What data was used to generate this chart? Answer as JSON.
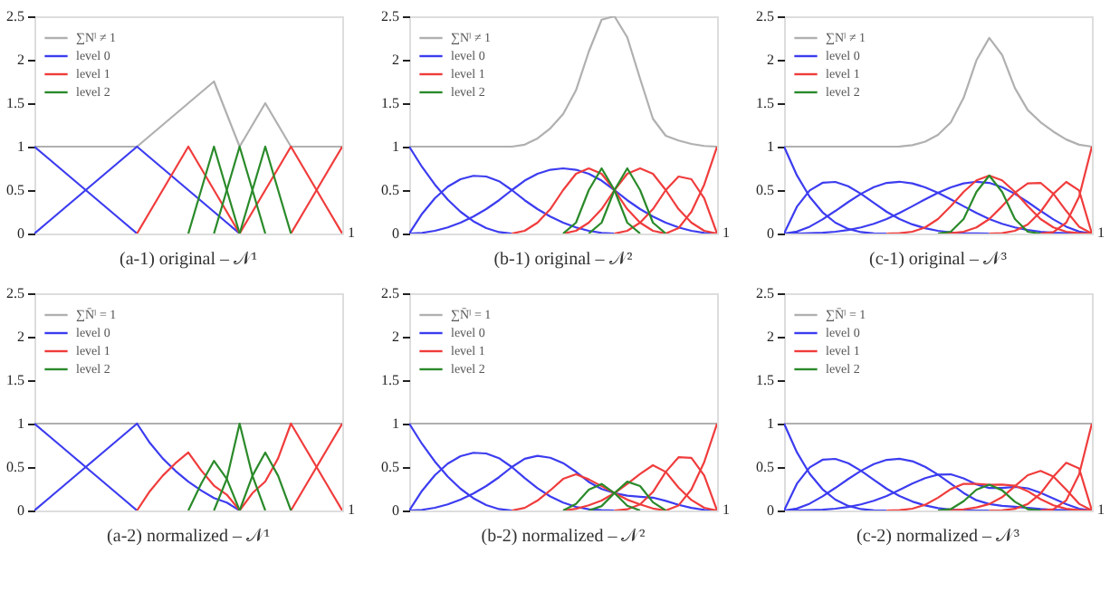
{
  "chart_data": [
    {
      "type": "line",
      "title": "(a-1) original – 𝒩¹",
      "categories": [
        null,
        null,
        null,
        null,
        null,
        null,
        null,
        null,
        null,
        null,
        null,
        null,
        null,
        null,
        null,
        null,
        null,
        null,
        null,
        null,
        null,
        null,
        null,
        null,
        null
      ],
      "annotations": [
        "1"
      ],
      "ylim": [
        0,
        2.5
      ],
      "yticks": [
        0,
        0.5,
        1,
        1.5,
        2,
        2.5
      ],
      "legend": "top left",
      "series": [
        {
          "name": "∑Nˡ ≠ 1",
          "color": "#b0b0b0",
          "values": [
            1,
            1,
            1,
            1,
            1,
            1,
            1,
            1,
            1,
            1.125,
            1.25,
            1.375,
            1.5,
            1.625,
            1.75,
            1.375,
            1,
            1.25,
            1.5,
            1.25,
            1,
            1,
            1,
            1,
            1
          ]
        },
        {
          "name": "level 0",
          "color": "#3c3cf0",
          "values": [
            1,
            0.875,
            0.75,
            0.625,
            0.5,
            0.375,
            0.25,
            0.125,
            0,
            null,
            null,
            null,
            null,
            null,
            null,
            null,
            null,
            null,
            null,
            null,
            null,
            null,
            null,
            null,
            null
          ]
        },
        {
          "color": "#3c3cf0",
          "values": [
            0,
            0.125,
            0.25,
            0.375,
            0.5,
            0.625,
            0.75,
            0.875,
            1,
            0.875,
            0.75,
            0.625,
            0.5,
            0.375,
            0.25,
            0.125,
            0,
            null,
            null,
            null,
            null,
            null,
            null,
            null,
            null
          ]
        },
        {
          "name": "level 1",
          "color": "#f03c3c",
          "values": [
            null,
            null,
            null,
            null,
            null,
            null,
            null,
            null,
            0,
            0.25,
            0.5,
            0.75,
            1,
            0.75,
            0.5,
            0.25,
            0,
            null,
            null,
            null,
            null,
            null,
            null,
            null,
            null
          ]
        },
        {
          "color": "#f03c3c",
          "values": [
            null,
            null,
            null,
            null,
            null,
            null,
            null,
            null,
            null,
            null,
            null,
            null,
            null,
            null,
            null,
            null,
            0,
            0.25,
            0.5,
            0.75,
            1,
            0.75,
            0.5,
            0.25,
            0
          ]
        },
        {
          "color": "#f03c3c",
          "values": [
            null,
            null,
            null,
            null,
            null,
            null,
            null,
            null,
            null,
            null,
            null,
            null,
            null,
            null,
            null,
            null,
            null,
            null,
            null,
            null,
            0,
            0.25,
            0.5,
            0.75,
            1
          ]
        },
        {
          "name": "level 2",
          "color": "#2a8a2a",
          "values": [
            null,
            null,
            null,
            null,
            null,
            null,
            null,
            null,
            null,
            null,
            null,
            null,
            0,
            0.5,
            1,
            0.5,
            0,
            null,
            null,
            null,
            null,
            null,
            null,
            null,
            null
          ]
        },
        {
          "color": "#2a8a2a",
          "values": [
            null,
            null,
            null,
            null,
            null,
            null,
            null,
            null,
            null,
            null,
            null,
            null,
            null,
            null,
            0,
            0.5,
            1,
            0.5,
            0,
            null,
            null,
            null,
            null,
            null,
            null
          ]
        },
        {
          "color": "#2a8a2a",
          "values": [
            null,
            null,
            null,
            null,
            null,
            null,
            null,
            null,
            null,
            null,
            null,
            null,
            null,
            null,
            null,
            null,
            0,
            0.5,
            1,
            0.5,
            0,
            null,
            null,
            null,
            null
          ]
        }
      ]
    },
    {
      "type": "line",
      "title": "(b-1) original – 𝒩²",
      "categories": [
        null,
        null,
        null,
        null,
        null,
        null,
        null,
        null,
        null,
        null,
        null,
        null,
        null,
        null,
        null,
        null,
        null,
        null,
        null,
        null,
        null,
        null,
        null,
        null,
        null
      ],
      "annotations": [
        "1"
      ],
      "ylim": [
        0,
        2.5
      ],
      "yticks": [
        0,
        0.5,
        1,
        1.5,
        2,
        2.5
      ],
      "legend": "top left",
      "series": [
        {
          "name": "∑Nˡ ≠ 1",
          "color": "#b0b0b0",
          "values": [
            1,
            1,
            1,
            1,
            1,
            1,
            1,
            1,
            1,
            1.023,
            1.094,
            1.21,
            1.375,
            1.648,
            2.094,
            2.461,
            2.5,
            2.258,
            1.781,
            1.32,
            1.125,
            1.07,
            1.031,
            1.008,
            1
          ]
        },
        {
          "name": "level 0",
          "color": "#3c3cf0",
          "values": [
            1,
            0.766,
            0.563,
            0.391,
            0.25,
            0.141,
            0.063,
            0.016,
            0,
            null,
            null,
            null,
            null,
            null,
            null,
            null,
            null,
            null,
            null,
            null,
            null,
            null,
            null,
            null,
            null
          ]
        },
        {
          "color": "#3c3cf0",
          "values": [
            0,
            0.227,
            0.406,
            0.539,
            0.625,
            0.664,
            0.656,
            0.602,
            0.5,
            0.383,
            0.281,
            0.195,
            0.125,
            0.07,
            0.031,
            0.008,
            0,
            null,
            null,
            null,
            null,
            null,
            null,
            null,
            null
          ]
        },
        {
          "color": "#3c3cf0",
          "values": [
            0,
            0.008,
            0.031,
            0.07,
            0.125,
            0.195,
            0.281,
            0.383,
            0.5,
            0.609,
            0.688,
            0.734,
            0.75,
            0.734,
            0.688,
            0.609,
            0.5,
            0.383,
            0.281,
            0.195,
            0.125,
            0.07,
            0.031,
            0.008,
            0
          ]
        },
        {
          "name": "level 1",
          "color": "#f03c3c",
          "values": [
            null,
            null,
            null,
            null,
            null,
            null,
            null,
            null,
            0,
            0.031,
            0.125,
            0.281,
            0.5,
            0.688,
            0.75,
            0.688,
            0.5,
            0.281,
            0.125,
            0.031,
            0,
            null,
            null,
            null,
            null
          ]
        },
        {
          "color": "#f03c3c",
          "values": [
            null,
            null,
            null,
            null,
            null,
            null,
            null,
            null,
            null,
            null,
            null,
            null,
            0,
            0.031,
            0.125,
            0.281,
            0.5,
            0.688,
            0.75,
            0.688,
            0.5,
            0.281,
            0.125,
            0.031,
            0
          ]
        },
        {
          "color": "#f03c3c",
          "values": [
            null,
            null,
            null,
            null,
            null,
            null,
            null,
            null,
            null,
            null,
            null,
            null,
            null,
            null,
            null,
            null,
            0,
            0.031,
            0.125,
            0.281,
            0.5,
            0.656,
            0.625,
            0.406,
            0
          ]
        },
        {
          "color": "#f03c3c",
          "values": [
            null,
            null,
            null,
            null,
            null,
            null,
            null,
            null,
            null,
            null,
            null,
            null,
            null,
            null,
            null,
            null,
            null,
            null,
            null,
            null,
            0,
            0.063,
            0.25,
            0.563,
            1
          ]
        },
        {
          "name": "level 2",
          "color": "#2a8a2a",
          "values": [
            null,
            null,
            null,
            null,
            null,
            null,
            null,
            null,
            null,
            null,
            null,
            null,
            0,
            0.125,
            0.5,
            0.75,
            0.5,
            0.125,
            0,
            null,
            null,
            null,
            null,
            null,
            null
          ]
        },
        {
          "color": "#2a8a2a",
          "values": [
            null,
            null,
            null,
            null,
            null,
            null,
            null,
            null,
            null,
            null,
            null,
            null,
            null,
            null,
            0,
            0.125,
            0.5,
            0.75,
            0.5,
            0.125,
            0,
            null,
            null,
            null,
            null
          ]
        }
      ]
    },
    {
      "type": "line",
      "title": "(c-1) original – 𝒩³",
      "categories": [
        null,
        null,
        null,
        null,
        null,
        null,
        null,
        null,
        null,
        null,
        null,
        null,
        null,
        null,
        null,
        null,
        null,
        null,
        null,
        null,
        null,
        null,
        null,
        null,
        null
      ],
      "annotations": [
        "1"
      ],
      "ylim": [
        0,
        2.5
      ],
      "yticks": [
        0,
        0.5,
        1,
        1.5,
        2,
        2.5
      ],
      "legend": "top left",
      "series": [
        {
          "name": "∑Nˡ ≠ 1",
          "color": "#b0b0b0",
          "values": [
            1,
            1,
            1,
            1,
            1,
            1,
            1,
            1,
            1,
            1.002,
            1.017,
            1.057,
            1.136,
            1.278,
            1.562,
            1.994,
            2.251,
            2.055,
            1.673,
            1.421,
            1.281,
            1.172,
            1.082,
            1.022,
            1
          ]
        },
        {
          "name": "level 0",
          "color": "#3c3cf0",
          "values": [
            1,
            0.67,
            0.422,
            0.244,
            0.125,
            0.053,
            0.016,
            0.002,
            0,
            null,
            null,
            null,
            null,
            null,
            null,
            null,
            null,
            null,
            null,
            null,
            null,
            null,
            null,
            null,
            null
          ]
        },
        {
          "color": "#3c3cf0",
          "values": [
            0,
            0.308,
            0.496,
            0.584,
            0.594,
            0.544,
            0.457,
            0.352,
            0.25,
            0.167,
            0.105,
            0.061,
            0.031,
            0.013,
            0.004,
            0.001,
            0,
            null,
            null,
            null,
            null,
            null,
            null,
            null,
            null
          ]
        },
        {
          "color": "#3c3cf0",
          "values": [
            0,
            0.022,
            0.079,
            0.163,
            0.26,
            0.362,
            0.457,
            0.534,
            0.583,
            0.596,
            0.577,
            0.532,
            0.469,
            0.394,
            0.314,
            0.236,
            0.167,
            0.112,
            0.07,
            0.041,
            0.021,
            0.009,
            0.003,
            0,
            null
          ]
        },
        {
          "color": "#3c3cf0",
          "values": [
            0,
            0,
            0.003,
            0.009,
            0.021,
            0.041,
            0.07,
            0.112,
            0.167,
            0.236,
            0.314,
            0.394,
            0.469,
            0.532,
            0.577,
            0.596,
            0.583,
            0.534,
            0.457,
            0.362,
            0.26,
            0.163,
            0.079,
            0.022,
            0
          ]
        },
        {
          "name": "level 1",
          "color": "#f03c3c",
          "values": [
            null,
            null,
            null,
            null,
            null,
            null,
            null,
            null,
            0,
            0.003,
            0.021,
            0.07,
            0.167,
            0.315,
            0.479,
            0.612,
            0.667,
            0.612,
            0.479,
            0.315,
            0.167,
            0.07,
            0.021,
            0.003,
            0
          ]
        },
        {
          "color": "#f03c3c",
          "values": [
            null,
            null,
            null,
            null,
            null,
            null,
            null,
            null,
            null,
            null,
            null,
            null,
            0,
            0.003,
            0.021,
            0.07,
            0.167,
            0.314,
            0.469,
            0.577,
            0.583,
            0.457,
            0.26,
            0.079,
            0
          ]
        },
        {
          "color": "#f03c3c",
          "values": [
            null,
            null,
            null,
            null,
            null,
            null,
            null,
            null,
            null,
            null,
            null,
            null,
            null,
            null,
            null,
            null,
            0,
            0.004,
            0.031,
            0.105,
            0.25,
            0.457,
            0.594,
            0.496,
            0
          ]
        },
        {
          "color": "#f03c3c",
          "values": [
            null,
            null,
            null,
            null,
            null,
            null,
            null,
            null,
            null,
            null,
            null,
            null,
            null,
            null,
            null,
            null,
            null,
            null,
            null,
            null,
            0,
            0.016,
            0.125,
            0.422,
            1
          ]
        },
        {
          "name": "level 2",
          "color": "#2a8a2a",
          "values": [
            null,
            null,
            null,
            null,
            null,
            null,
            null,
            null,
            null,
            null,
            null,
            null,
            0,
            0.021,
            0.167,
            0.479,
            0.667,
            0.479,
            0.167,
            0.021,
            0,
            null,
            null,
            null,
            null
          ]
        }
      ]
    },
    {
      "type": "line",
      "title": "(a-2) normalized – 𝒩¹",
      "categories": [
        null,
        null,
        null,
        null,
        null,
        null,
        null,
        null,
        null,
        null,
        null,
        null,
        null,
        null,
        null,
        null,
        null,
        null,
        null,
        null,
        null,
        null,
        null,
        null,
        null
      ],
      "annotations": [
        "1"
      ],
      "ylim": [
        0,
        2.5
      ],
      "yticks": [
        0,
        0.5,
        1,
        1.5,
        2,
        2.5
      ],
      "legend": "top left",
      "series": [
        {
          "name": "∑N̄ˡ = 1",
          "color": "#b0b0b0",
          "values": [
            1,
            1,
            1,
            1,
            1,
            1,
            1,
            1,
            1,
            1,
            1,
            1,
            1,
            1,
            1,
            1,
            1,
            1,
            1,
            1,
            1,
            1,
            1,
            1,
            1
          ]
        },
        {
          "name": "level 0",
          "color": "#3c3cf0",
          "values": [
            1,
            0.875,
            0.75,
            0.625,
            0.5,
            0.375,
            0.25,
            0.125,
            0,
            null,
            null,
            null,
            null,
            null,
            null,
            null,
            null,
            null,
            null,
            null,
            null,
            null,
            null,
            null,
            null
          ]
        },
        {
          "color": "#3c3cf0",
          "values": [
            0,
            0.125,
            0.25,
            0.375,
            0.5,
            0.625,
            0.75,
            0.875,
            1,
            0.778,
            0.6,
            0.455,
            0.333,
            0.231,
            0.143,
            0.091,
            0,
            null,
            null,
            null,
            null,
            null,
            null,
            null,
            null
          ]
        },
        {
          "name": "level 1",
          "color": "#f03c3c",
          "values": [
            null,
            null,
            null,
            null,
            null,
            null,
            null,
            null,
            0,
            0.222,
            0.4,
            0.545,
            0.667,
            0.462,
            0.286,
            0.182,
            0,
            null,
            null,
            null,
            null,
            null,
            null,
            null,
            null
          ]
        },
        {
          "color": "#f03c3c",
          "values": [
            null,
            null,
            null,
            null,
            null,
            null,
            null,
            null,
            null,
            null,
            null,
            null,
            null,
            null,
            null,
            null,
            0,
            0.2,
            0.333,
            0.6,
            1,
            0.75,
            0.5,
            0.25,
            0
          ]
        },
        {
          "color": "#f03c3c",
          "values": [
            null,
            null,
            null,
            null,
            null,
            null,
            null,
            null,
            null,
            null,
            null,
            null,
            null,
            null,
            null,
            null,
            null,
            null,
            null,
            null,
            0,
            0.25,
            0.5,
            0.75,
            1
          ]
        },
        {
          "name": "level 2",
          "color": "#2a8a2a",
          "values": [
            null,
            null,
            null,
            null,
            null,
            null,
            null,
            null,
            null,
            null,
            null,
            null,
            0,
            0.308,
            0.571,
            0.364,
            0,
            null,
            null,
            null,
            null,
            null,
            null,
            null,
            null
          ]
        },
        {
          "color": "#2a8a2a",
          "values": [
            null,
            null,
            null,
            null,
            null,
            null,
            null,
            null,
            null,
            null,
            null,
            null,
            null,
            null,
            0,
            0.364,
            1,
            0.4,
            0,
            null,
            null,
            null,
            null,
            null,
            null
          ]
        },
        {
          "color": "#2a8a2a",
          "values": [
            null,
            null,
            null,
            null,
            null,
            null,
            null,
            null,
            null,
            null,
            null,
            null,
            null,
            null,
            null,
            null,
            0,
            0.4,
            0.667,
            0.4,
            0,
            null,
            null,
            null,
            null
          ]
        }
      ]
    },
    {
      "type": "line",
      "title": "(b-2) normalized – 𝒩²",
      "categories": [
        null,
        null,
        null,
        null,
        null,
        null,
        null,
        null,
        null,
        null,
        null,
        null,
        null,
        null,
        null,
        null,
        null,
        null,
        null,
        null,
        null,
        null,
        null,
        null,
        null
      ],
      "annotations": [
        "1"
      ],
      "ylim": [
        0,
        2.5
      ],
      "yticks": [
        0,
        0.5,
        1,
        1.5,
        2,
        2.5
      ],
      "legend": "top left",
      "series": [
        {
          "name": "∑N̄ˡ = 1",
          "color": "#b0b0b0",
          "values": [
            1,
            1,
            1,
            1,
            1,
            1,
            1,
            1,
            1,
            1,
            1,
            1,
            1,
            1,
            1,
            1,
            1,
            1,
            1,
            1,
            1,
            1,
            1,
            1,
            1
          ]
        },
        {
          "name": "level 0",
          "color": "#3c3cf0",
          "values": [
            1,
            0.766,
            0.563,
            0.391,
            0.25,
            0.141,
            0.063,
            0.016,
            0,
            null,
            null,
            null,
            null,
            null,
            null,
            null,
            null,
            null,
            null,
            null,
            null,
            null,
            null,
            null,
            null
          ]
        },
        {
          "color": "#3c3cf0",
          "values": [
            0,
            0.227,
            0.406,
            0.539,
            0.625,
            0.664,
            0.656,
            0.602,
            0.5,
            0.374,
            0.257,
            0.161,
            0.091,
            0.042,
            0.015,
            0.003,
            0,
            null,
            null,
            null,
            null,
            null,
            null,
            null,
            null
          ]
        },
        {
          "color": "#3c3cf0",
          "values": [
            0,
            0.008,
            0.031,
            0.07,
            0.125,
            0.195,
            0.281,
            0.383,
            0.5,
            0.595,
            0.629,
            0.607,
            0.545,
            0.445,
            0.329,
            0.247,
            0.2,
            0.17,
            0.158,
            0.148,
            0.111,
            0.065,
            0.03,
            0.008,
            0
          ]
        },
        {
          "name": "level 1",
          "color": "#f03c3c",
          "values": [
            null,
            null,
            null,
            null,
            null,
            null,
            null,
            null,
            0,
            0.03,
            0.114,
            0.232,
            0.364,
            0.417,
            0.358,
            0.28,
            0.2,
            0.124,
            0.07,
            0.023,
            0,
            null,
            null,
            null,
            null
          ]
        },
        {
          "color": "#f03c3c",
          "values": [
            null,
            null,
            null,
            null,
            null,
            null,
            null,
            null,
            null,
            null,
            null,
            null,
            0,
            0.019,
            0.06,
            0.114,
            0.2,
            0.305,
            0.421,
            0.521,
            0.444,
            0.263,
            0.121,
            0.031,
            0
          ]
        },
        {
          "color": "#f03c3c",
          "values": [
            null,
            null,
            null,
            null,
            null,
            null,
            null,
            null,
            null,
            null,
            null,
            null,
            null,
            null,
            null,
            null,
            0,
            0.014,
            0.07,
            0.213,
            0.444,
            0.613,
            0.606,
            0.403,
            0
          ]
        },
        {
          "color": "#f03c3c",
          "values": [
            null,
            null,
            null,
            null,
            null,
            null,
            null,
            null,
            null,
            null,
            null,
            null,
            null,
            null,
            null,
            null,
            null,
            null,
            null,
            null,
            0,
            0.058,
            0.242,
            0.558,
            1
          ]
        },
        {
          "name": "level 2",
          "color": "#2a8a2a",
          "values": [
            null,
            null,
            null,
            null,
            null,
            null,
            null,
            null,
            null,
            null,
            null,
            null,
            0,
            0.076,
            0.239,
            0.305,
            0.2,
            0.055,
            0,
            null,
            null,
            null,
            null,
            null,
            null
          ]
        },
        {
          "color": "#2a8a2a",
          "values": [
            null,
            null,
            null,
            null,
            null,
            null,
            null,
            null,
            null,
            null,
            null,
            null,
            null,
            null,
            0,
            0.051,
            0.2,
            0.332,
            0.281,
            0.095,
            0,
            null,
            null,
            null,
            null
          ]
        }
      ]
    },
    {
      "type": "line",
      "title": "(c-2) normalized – 𝒩³",
      "categories": [
        null,
        null,
        null,
        null,
        null,
        null,
        null,
        null,
        null,
        null,
        null,
        null,
        null,
        null,
        null,
        null,
        null,
        null,
        null,
        null,
        null,
        null,
        null,
        null,
        null
      ],
      "annotations": [
        "1"
      ],
      "ylim": [
        0,
        2.5
      ],
      "yticks": [
        0,
        0.5,
        1,
        1.5,
        2,
        2.5
      ],
      "legend": "top left",
      "series": [
        {
          "name": "∑N̄ˡ = 1",
          "color": "#b0b0b0",
          "values": [
            1,
            1,
            1,
            1,
            1,
            1,
            1,
            1,
            1,
            1,
            1,
            1,
            1,
            1,
            1,
            1,
            1,
            1,
            1,
            1,
            1,
            1,
            1,
            1,
            1
          ]
        },
        {
          "name": "level 0",
          "color": "#3c3cf0",
          "values": [
            1,
            0.67,
            0.422,
            0.244,
            0.125,
            0.053,
            0.016,
            0.002,
            0,
            null,
            null,
            null,
            null,
            null,
            null,
            null,
            null,
            null,
            null,
            null,
            null,
            null,
            null,
            null,
            null
          ]
        },
        {
          "color": "#3c3cf0",
          "values": [
            0,
            0.308,
            0.496,
            0.584,
            0.594,
            0.544,
            0.457,
            0.352,
            0.25,
            0.167,
            0.103,
            0.058,
            0.027,
            0.01,
            0.003,
            0,
            0,
            null,
            null,
            null,
            null,
            null,
            null,
            null,
            null
          ]
        },
        {
          "color": "#3c3cf0",
          "values": [
            0,
            0.022,
            0.079,
            0.163,
            0.26,
            0.362,
            0.457,
            0.534,
            0.583,
            0.595,
            0.567,
            0.503,
            0.413,
            0.308,
            0.201,
            0.118,
            0.074,
            0.054,
            0.042,
            0.029,
            0.016,
            0.008,
            0.003,
            0,
            null
          ]
        },
        {
          "color": "#3c3cf0",
          "values": [
            0,
            0,
            0.003,
            0.009,
            0.021,
            0.041,
            0.07,
            0.112,
            0.167,
            0.236,
            0.309,
            0.373,
            0.413,
            0.416,
            0.369,
            0.299,
            0.259,
            0.26,
            0.273,
            0.255,
            0.203,
            0.139,
            0.073,
            0.021,
            0
          ]
        },
        {
          "name": "level 1",
          "color": "#f03c3c",
          "values": [
            null,
            null,
            null,
            null,
            null,
            null,
            null,
            null,
            0,
            0.003,
            0.021,
            0.066,
            0.147,
            0.246,
            0.307,
            0.307,
            0.296,
            0.298,
            0.286,
            0.222,
            0.13,
            0.06,
            0.019,
            0.003,
            0
          ]
        },
        {
          "color": "#f03c3c",
          "values": [
            null,
            null,
            null,
            null,
            null,
            null,
            null,
            null,
            null,
            null,
            null,
            null,
            0,
            0.002,
            0.013,
            0.035,
            0.074,
            0.153,
            0.28,
            0.406,
            0.455,
            0.39,
            0.24,
            0.077,
            0
          ]
        },
        {
          "color": "#f03c3c",
          "values": [
            null,
            null,
            null,
            null,
            null,
            null,
            null,
            null,
            null,
            null,
            null,
            null,
            null,
            null,
            null,
            null,
            0,
            0.002,
            0.019,
            0.074,
            0.195,
            0.39,
            0.549,
            0.485,
            0
          ]
        },
        {
          "color": "#f03c3c",
          "values": [
            null,
            null,
            null,
            null,
            null,
            null,
            null,
            null,
            null,
            null,
            null,
            null,
            null,
            null,
            null,
            null,
            null,
            null,
            null,
            null,
            0,
            0.014,
            0.116,
            0.413,
            1
          ]
        },
        {
          "name": "level 2",
          "color": "#2a8a2a",
          "values": [
            null,
            null,
            null,
            null,
            null,
            null,
            null,
            null,
            null,
            null,
            null,
            null,
            0,
            0.016,
            0.107,
            0.24,
            0.296,
            0.233,
            0.1,
            0.015,
            0,
            null,
            null,
            null,
            null
          ]
        }
      ]
    }
  ]
}
